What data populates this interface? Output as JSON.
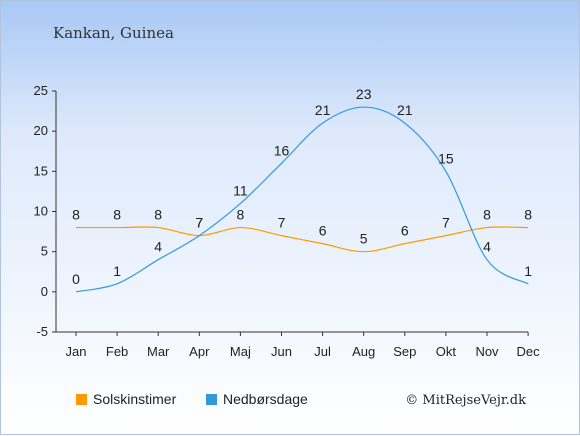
{
  "chart_data": {
    "type": "line",
    "title": "Kankan, Guinea",
    "categories": [
      "Jan",
      "Feb",
      "Mar",
      "Apr",
      "Maj",
      "Jun",
      "Jul",
      "Aug",
      "Sep",
      "Okt",
      "Nov",
      "Dec"
    ],
    "ylim": [
      -5,
      25
    ],
    "yticks": [
      -5,
      0,
      5,
      10,
      15,
      20,
      25
    ],
    "series": [
      {
        "name": "Solskinstimer",
        "color": "#ff9900",
        "values": [
          8,
          8,
          8,
          7,
          8,
          7,
          6,
          5,
          6,
          7,
          8,
          8
        ]
      },
      {
        "name": "Nedbørsdage",
        "color": "#3399dd",
        "values": [
          0,
          1,
          4,
          7,
          11,
          16,
          21,
          23,
          21,
          15,
          4,
          1
        ]
      }
    ],
    "legend_position": "bottom",
    "grid": false
  },
  "credit": "© MitRejseVejr.dk"
}
